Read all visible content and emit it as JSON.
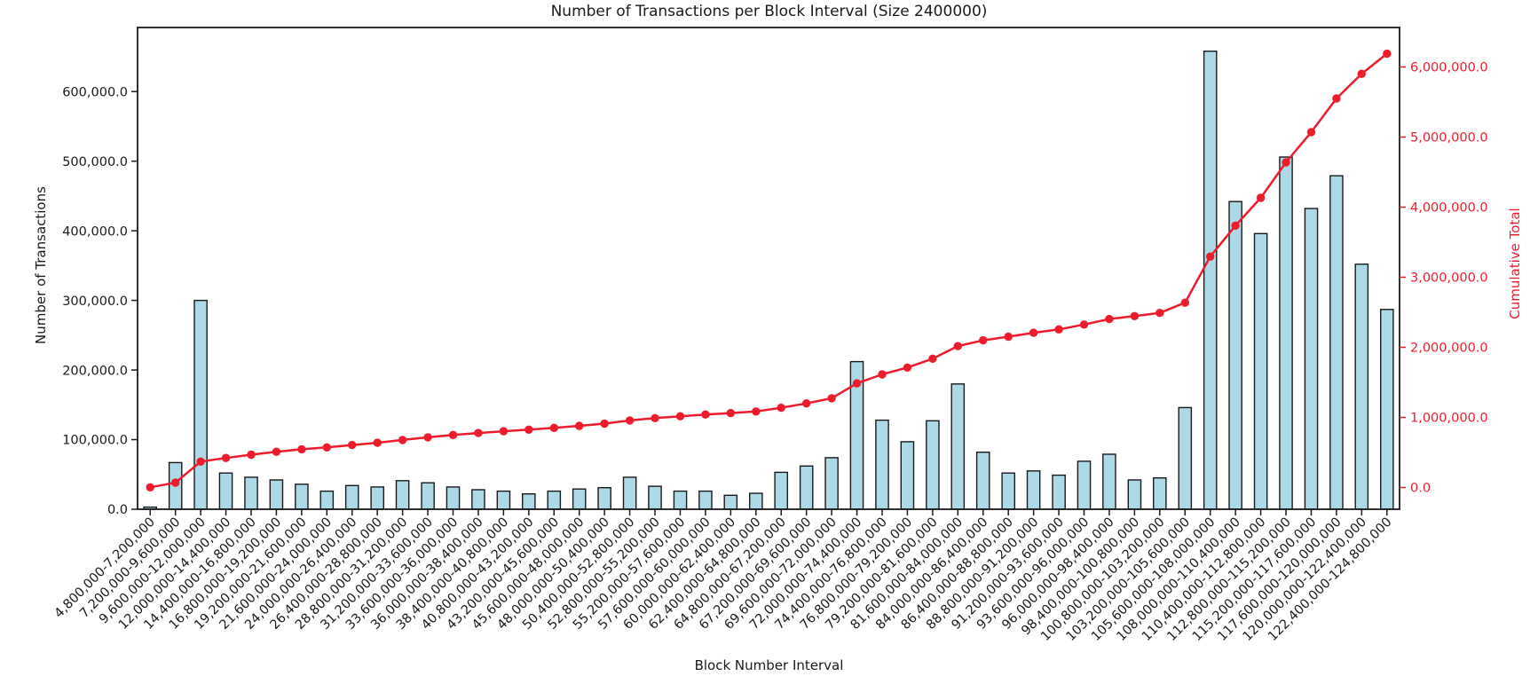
{
  "chart_data": {
    "type": "bar+line",
    "title": "Number of Transactions per Block Interval (Size 2400000)",
    "xlabel": "Block Number Interval",
    "ylabel_left": "Number of Transactions",
    "ylabel_right": "Cumulative Total",
    "grid": false,
    "legend": null,
    "categories": [
      "4,800,000-7,200,000",
      "7,200,000-9,600,000",
      "9,600,000-12,000,000",
      "12,000,000-14,400,000",
      "14,400,000-16,800,000",
      "16,800,000-19,200,000",
      "19,200,000-21,600,000",
      "21,600,000-24,000,000",
      "24,000,000-26,400,000",
      "26,400,000-28,800,000",
      "28,800,000-31,200,000",
      "31,200,000-33,600,000",
      "33,600,000-36,000,000",
      "36,000,000-38,400,000",
      "38,400,000-40,800,000",
      "40,800,000-43,200,000",
      "43,200,000-45,600,000",
      "45,600,000-48,000,000",
      "48,000,000-50,400,000",
      "50,400,000-52,800,000",
      "52,800,000-55,200,000",
      "55,200,000-57,600,000",
      "57,600,000-60,000,000",
      "60,000,000-62,400,000",
      "62,400,000-64,800,000",
      "64,800,000-67,200,000",
      "67,200,000-69,600,000",
      "69,600,000-72,000,000",
      "72,000,000-74,400,000",
      "74,400,000-76,800,000",
      "76,800,000-79,200,000",
      "79,200,000-81,600,000",
      "81,600,000-84,000,000",
      "84,000,000-86,400,000",
      "86,400,000-88,800,000",
      "88,800,000-91,200,000",
      "91,200,000-93,600,000",
      "93,600,000-96,000,000",
      "96,000,000-98,400,000",
      "98,400,000-100,800,000",
      "100,800,000-103,200,000",
      "103,200,000-105,600,000",
      "105,600,000-108,000,000",
      "108,000,000-110,400,000",
      "110,400,000-112,800,000",
      "112,800,000-115,200,000",
      "115,200,000-117,600,000",
      "117,600,000-120,000,000",
      "120,000,000-122,400,000",
      "122,400,000-124,800,000"
    ],
    "series": [
      {
        "name": "Number of Transactions",
        "type": "bar",
        "color": "#add8e6",
        "edge_color": "#1a1a1a",
        "values": [
          3000,
          67000,
          300000,
          52000,
          46000,
          42000,
          36000,
          26000,
          34000,
          32000,
          41000,
          38000,
          32000,
          28000,
          26000,
          22000,
          26000,
          29000,
          31000,
          46000,
          33000,
          26000,
          26000,
          20000,
          23000,
          53000,
          62000,
          74000,
          212000,
          128000,
          97000,
          127000,
          180000,
          82000,
          52000,
          55000,
          49000,
          69000,
          79000,
          42000,
          45000,
          146000,
          658000,
          442000,
          396000,
          506000,
          432000,
          479000,
          352000,
          287000
        ]
      },
      {
        "name": "Cumulative Total",
        "type": "line",
        "color": "#ed1c2c",
        "values": [
          3000,
          70000,
          370000,
          422000,
          468000,
          510000,
          546000,
          572000,
          606000,
          638000,
          679000,
          717000,
          749000,
          777000,
          803000,
          825000,
          851000,
          880000,
          911000,
          957000,
          990000,
          1016000,
          1042000,
          1062000,
          1085000,
          1138000,
          1200000,
          1274000,
          1486000,
          1614000,
          1711000,
          1838000,
          2018000,
          2100000,
          2152000,
          2207000,
          2256000,
          2325000,
          2404000,
          2446000,
          2491000,
          2637000,
          3295000,
          3737000,
          4133000,
          4639000,
          5071000,
          5550000,
          5902000,
          6189000
        ]
      }
    ],
    "left_axis": {
      "color": "#1a1a1a",
      "lim": [
        0,
        692000
      ],
      "ticks": [
        {
          "label": "0.0",
          "value": 0
        },
        {
          "label": "100,000.0",
          "value": 100000
        },
        {
          "label": "200,000.0",
          "value": 200000
        },
        {
          "label": "300,000.0",
          "value": 300000
        },
        {
          "label": "400,000.0",
          "value": 400000
        },
        {
          "label": "500,000.0",
          "value": 500000
        },
        {
          "label": "600,000.0",
          "value": 600000
        }
      ]
    },
    "right_axis": {
      "color": "#ed1c2c",
      "lim": [
        -310000,
        6563000
      ],
      "ticks": [
        {
          "label": "0.0",
          "value": 0
        },
        {
          "label": "1,000,000.0",
          "value": 1000000
        },
        {
          "label": "2,000,000.0",
          "value": 2000000
        },
        {
          "label": "3,000,000.0",
          "value": 3000000
        },
        {
          "label": "4,000,000.0",
          "value": 4000000
        },
        {
          "label": "5,000,000.0",
          "value": 5000000
        },
        {
          "label": "6,000,000.0",
          "value": 6000000
        }
      ]
    }
  }
}
